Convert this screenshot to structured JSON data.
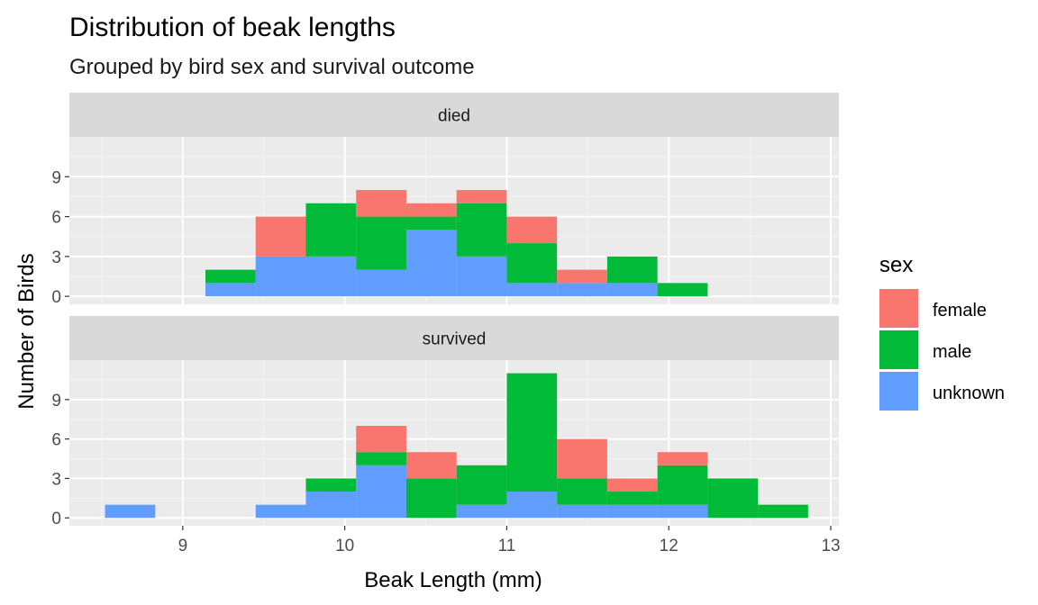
{
  "chart_data": {
    "type": "bar",
    "stacked": true,
    "title": "Distribution of beak lengths",
    "subtitle": "Grouped by bird sex and survival outcome",
    "xlabel": "Beak Length (mm)",
    "ylabel": "Number of Birds",
    "xlim": [
      8.3,
      13.05
    ],
    "ylim": [
      -0.6,
      12.0
    ],
    "x_ticks": [
      9,
      10,
      11,
      12,
      13
    ],
    "x_tick_labels": [
      "9",
      "10",
      "11",
      "12",
      "13"
    ],
    "y_ticks": [
      0,
      3,
      6,
      9
    ],
    "y_tick_labels": [
      "0",
      "3",
      "6",
      "9"
    ],
    "bin_width": 0.31,
    "grid": true,
    "legend": {
      "title": "sex",
      "position": "right"
    },
    "series": [
      {
        "name": "female",
        "color": "#F8766D"
      },
      {
        "name": "male",
        "color": "#00BA38"
      },
      {
        "name": "unknown",
        "color": "#619CFF"
      }
    ],
    "facets": [
      {
        "label": "died",
        "bins": [
          {
            "x0": 9.14,
            "x1": 9.45,
            "unknown": 1,
            "male": 1,
            "female": 0
          },
          {
            "x0": 9.45,
            "x1": 9.76,
            "unknown": 3,
            "male": 0,
            "female": 3
          },
          {
            "x0": 9.76,
            "x1": 10.07,
            "unknown": 3,
            "male": 4,
            "female": 0
          },
          {
            "x0": 10.07,
            "x1": 10.38,
            "unknown": 2,
            "male": 4,
            "female": 2
          },
          {
            "x0": 10.38,
            "x1": 10.69,
            "unknown": 5,
            "male": 1,
            "female": 1
          },
          {
            "x0": 10.69,
            "x1": 11.0,
            "unknown": 3,
            "male": 4,
            "female": 1
          },
          {
            "x0": 11.0,
            "x1": 11.31,
            "unknown": 1,
            "male": 3,
            "female": 2
          },
          {
            "x0": 11.31,
            "x1": 11.62,
            "unknown": 1,
            "male": 0,
            "female": 1
          },
          {
            "x0": 11.62,
            "x1": 11.93,
            "unknown": 1,
            "male": 2,
            "female": 0
          },
          {
            "x0": 11.93,
            "x1": 12.24,
            "unknown": 0,
            "male": 1,
            "female": 0
          }
        ]
      },
      {
        "label": "survived",
        "bins": [
          {
            "x0": 8.52,
            "x1": 8.83,
            "unknown": 1,
            "male": 0,
            "female": 0
          },
          {
            "x0": 9.45,
            "x1": 9.76,
            "unknown": 1,
            "male": 0,
            "female": 0
          },
          {
            "x0": 9.76,
            "x1": 10.07,
            "unknown": 2,
            "male": 1,
            "female": 0
          },
          {
            "x0": 10.07,
            "x1": 10.38,
            "unknown": 4,
            "male": 1,
            "female": 2
          },
          {
            "x0": 10.38,
            "x1": 10.69,
            "unknown": 0,
            "male": 3,
            "female": 2
          },
          {
            "x0": 10.69,
            "x1": 11.0,
            "unknown": 1,
            "male": 3,
            "female": 0
          },
          {
            "x0": 11.0,
            "x1": 11.31,
            "unknown": 2,
            "male": 9,
            "female": 0
          },
          {
            "x0": 11.31,
            "x1": 11.62,
            "unknown": 1,
            "male": 2,
            "female": 3
          },
          {
            "x0": 11.62,
            "x1": 11.93,
            "unknown": 1,
            "male": 1,
            "female": 1
          },
          {
            "x0": 11.93,
            "x1": 12.24,
            "unknown": 1,
            "male": 3,
            "female": 1
          },
          {
            "x0": 12.24,
            "x1": 12.55,
            "unknown": 0,
            "male": 3,
            "female": 0
          },
          {
            "x0": 12.55,
            "x1": 12.86,
            "unknown": 0,
            "male": 1,
            "female": 0
          }
        ]
      }
    ]
  }
}
